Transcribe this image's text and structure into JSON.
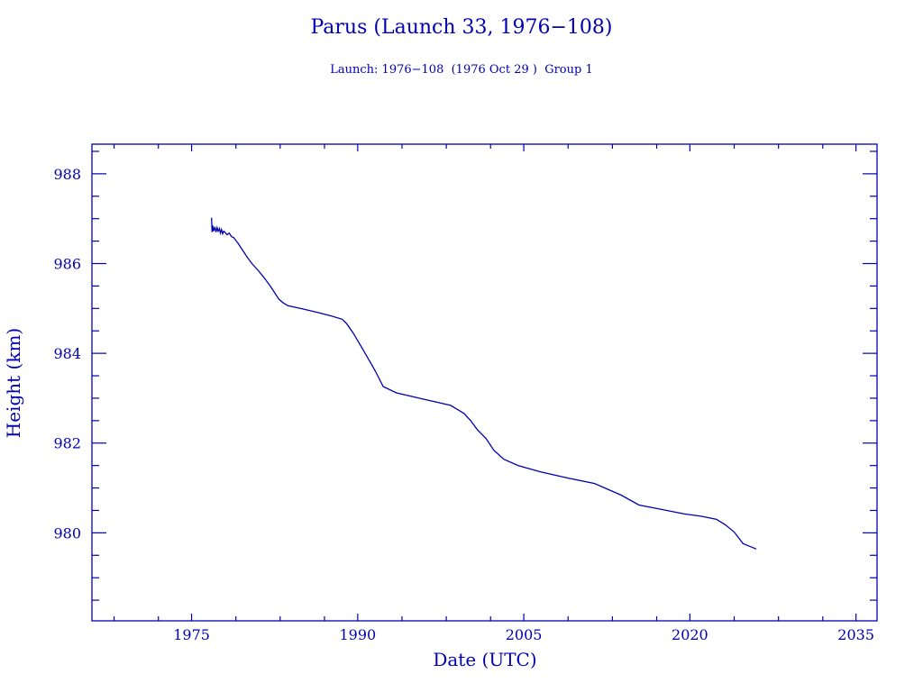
{
  "chart_data": {
    "type": "line",
    "title": "Parus (Launch 33, 1976−108)",
    "subtitle": "Launch: 1976−108  (1976 Oct 29 )  Group 1",
    "xlabel": "Date (UTC)",
    "ylabel": "Height (km)",
    "xlim": [
      1966.0,
      2036.9
    ],
    "ylim": [
      978.04,
      988.66
    ],
    "xticks": [
      1975,
      1990,
      2005,
      2020,
      2035
    ],
    "xtick_labels": [
      "1975",
      "1990",
      "2005",
      "2020",
      "2035"
    ],
    "xminor": [
      1968,
      1972,
      1979,
      1983,
      1987,
      1994,
      1998,
      2002,
      2009,
      2013,
      2017,
      2024,
      2028,
      2032
    ],
    "yticks": [
      980,
      982,
      984,
      986,
      988
    ],
    "ytick_labels": [
      "980",
      "982",
      "984",
      "986",
      "988"
    ],
    "yminor_step": 0.5,
    "grid": false,
    "color": "#0000b0",
    "series": [
      {
        "name": "Height",
        "x": [
          1976.8,
          1976.85,
          1976.9,
          1977.0,
          1977.1,
          1977.2,
          1977.3,
          1977.4,
          1977.5,
          1977.6,
          1977.7,
          1977.8,
          1977.9,
          1978.0,
          1978.2,
          1978.4,
          1978.6,
          1978.8,
          1979.2,
          1979.6,
          1980.0,
          1980.45,
          1981.0,
          1981.5,
          1982.1,
          1982.5,
          1982.9,
          1983.3,
          1983.7,
          1985.0,
          1986.2,
          1987.5,
          1988.6,
          1989.0,
          1989.6,
          1990.2,
          1991.0,
          1991.6,
          1992.3,
          1993.5,
          1995.9,
          1998.4,
          1999.6,
          2000.2,
          2000.8,
          2001.6,
          2002.3,
          2003.2,
          2004.5,
          2006.5,
          2009.0,
          2011.4,
          2012.6,
          2013.8,
          2015.4,
          2017.5,
          2019.5,
          2021.0,
          2022.4,
          2023.2,
          2024.0,
          2024.8,
          2025.4,
          2026.0
        ],
        "y": [
          987.02,
          986.7,
          986.85,
          986.72,
          986.82,
          986.7,
          986.8,
          986.72,
          986.78,
          986.68,
          986.76,
          986.66,
          986.72,
          986.7,
          986.64,
          986.68,
          986.6,
          986.58,
          986.45,
          986.3,
          986.15,
          986.0,
          985.85,
          985.7,
          985.5,
          985.35,
          985.2,
          985.12,
          985.06,
          984.99,
          984.92,
          984.84,
          984.76,
          984.66,
          984.45,
          984.2,
          983.86,
          983.6,
          983.26,
          983.12,
          982.98,
          982.84,
          982.66,
          982.5,
          982.3,
          982.1,
          981.84,
          981.64,
          981.5,
          981.36,
          981.22,
          981.1,
          980.97,
          980.84,
          980.62,
          980.52,
          980.42,
          980.37,
          980.3,
          980.18,
          980.02,
          979.76,
          979.7,
          979.64
        ]
      }
    ]
  }
}
